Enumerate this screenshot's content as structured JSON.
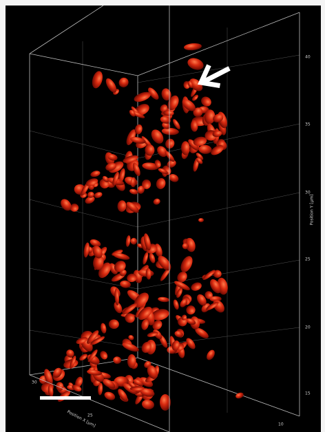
{
  "axes": {
    "y": {
      "label": "Position Y [µm]",
      "ticks": [
        "40",
        "35",
        "30",
        "25",
        "20",
        "15"
      ]
    },
    "x": {
      "label": "Position X [µm]",
      "ticks": [
        "30",
        "25"
      ]
    },
    "z": {
      "ticks": [
        "10"
      ]
    }
  }
}
